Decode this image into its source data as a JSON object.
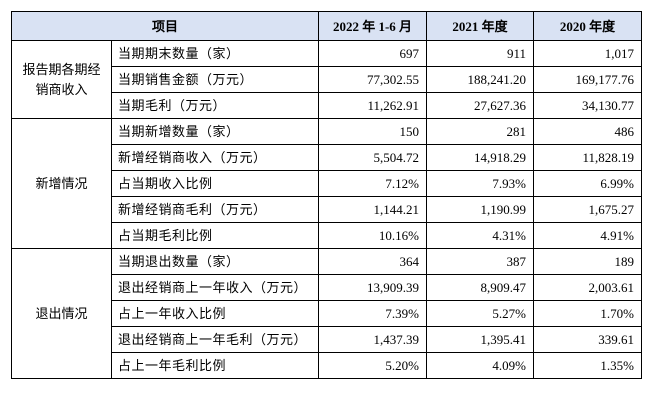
{
  "table": {
    "headers": [
      "项目",
      "2022 年 1-6 月",
      "2021 年度",
      "2020 年度"
    ],
    "groups": [
      {
        "label": "报告期各期经销商收入",
        "rows": [
          {
            "item": "当期期末数量（家）",
            "values": [
              "697",
              "911",
              "1,017"
            ]
          },
          {
            "item": "当期销售金额（万元）",
            "values": [
              "77,302.55",
              "188,241.20",
              "169,177.76"
            ]
          },
          {
            "item": "当期毛利（万元）",
            "values": [
              "11,262.91",
              "27,627.36",
              "34,130.77"
            ]
          }
        ]
      },
      {
        "label": "新增情况",
        "rows": [
          {
            "item": "当期新增数量（家）",
            "values": [
              "150",
              "281",
              "486"
            ]
          },
          {
            "item": "新增经销商收入（万元）",
            "values": [
              "5,504.72",
              "14,918.29",
              "11,828.19"
            ]
          },
          {
            "item": "占当期收入比例",
            "values": [
              "7.12%",
              "7.93%",
              "6.99%"
            ]
          },
          {
            "item": "新增经销商毛利（万元）",
            "values": [
              "1,144.21",
              "1,190.99",
              "1,675.27"
            ]
          },
          {
            "item": "占当期毛利比例",
            "values": [
              "10.16%",
              "4.31%",
              "4.91%"
            ]
          }
        ]
      },
      {
        "label": "退出情况",
        "rows": [
          {
            "item": "当期退出数量（家）",
            "values": [
              "364",
              "387",
              "189"
            ]
          },
          {
            "item": "退出经销商上一年收入（万元）",
            "values": [
              "13,909.39",
              "8,909.47",
              "2,003.61"
            ]
          },
          {
            "item": "占上一年收入比例",
            "values": [
              "7.39%",
              "5.27%",
              "1.70%"
            ]
          },
          {
            "item": "退出经销商上一年毛利（万元）",
            "values": [
              "1,437.39",
              "1,395.41",
              "339.61"
            ]
          },
          {
            "item": "占上一年毛利比例",
            "values": [
              "5.20%",
              "4.09%",
              "1.35%"
            ]
          }
        ]
      }
    ]
  },
  "colors": {
    "header_bg": "#d9e2f3",
    "border": "#000000"
  }
}
